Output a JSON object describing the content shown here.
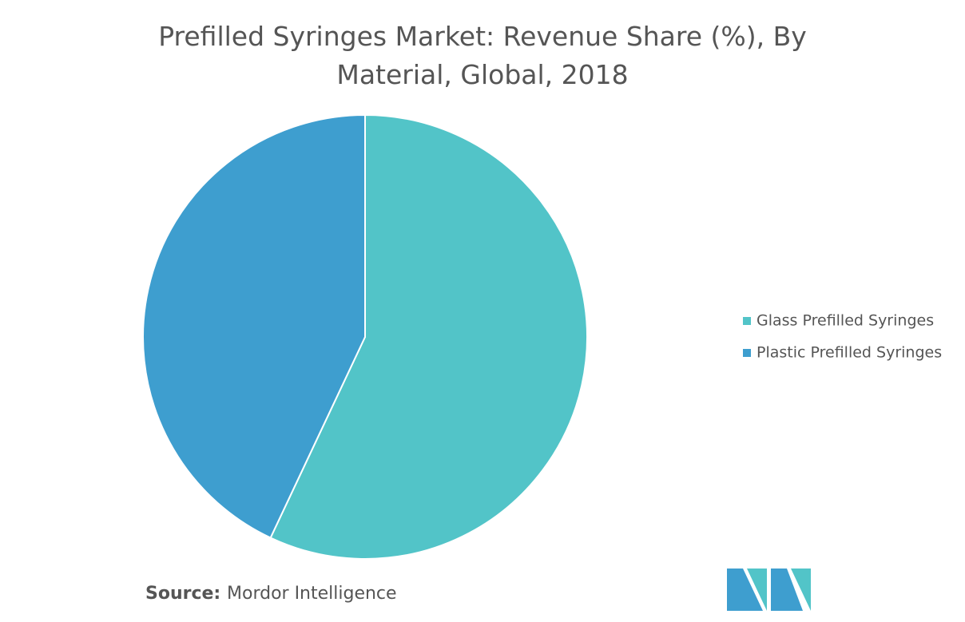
{
  "chart_data": {
    "type": "pie",
    "title": "Prefilled Syringes Market: Revenue Share (%), By Material, Global, 2018",
    "categories": [
      "Glass Prefilled Syringes",
      "Plastic Prefilled Syringes"
    ],
    "values": [
      57,
      43
    ],
    "colors": [
      "#52c4c8",
      "#3e9ecf"
    ],
    "legend": "right",
    "source_label": "Source:",
    "source": "Mordor Intelligence"
  }
}
